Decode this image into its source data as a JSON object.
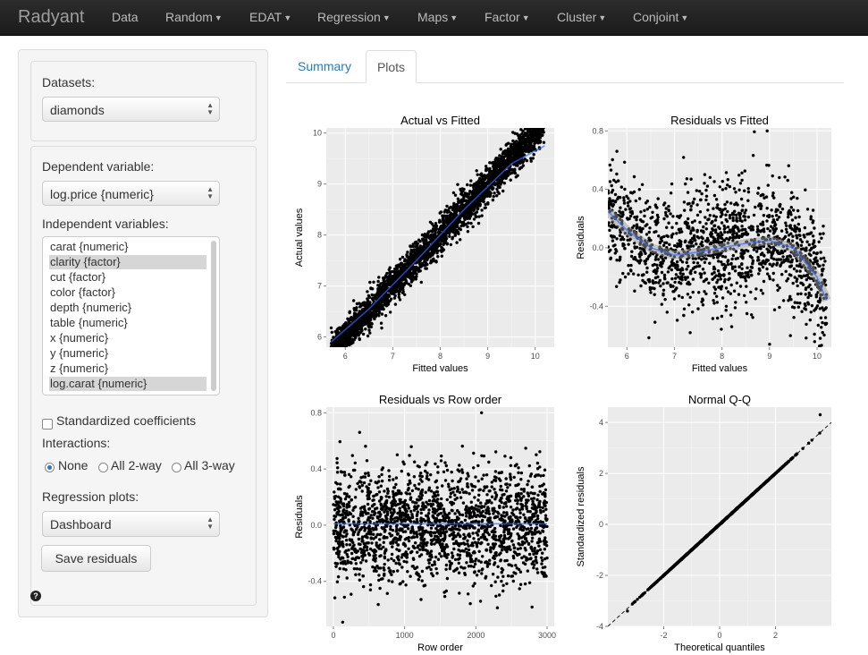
{
  "navbar": {
    "brand": "Radyant",
    "items": [
      "Data",
      "Random",
      "EDAT",
      "Regression",
      "Maps",
      "Factor",
      "Cluster",
      "Conjoint"
    ]
  },
  "sidebar": {
    "datasets_label": "Datasets:",
    "dataset_value": "diamonds",
    "dependent_label": "Dependent variable:",
    "dependent_value": "log.price {numeric}",
    "independent_label": "Independent variables:",
    "independent_options": [
      {
        "label": "carat {numeric}",
        "selected": false
      },
      {
        "label": "clarity {factor}",
        "selected": true
      },
      {
        "label": "cut {factor}",
        "selected": false
      },
      {
        "label": "color {factor}",
        "selected": false
      },
      {
        "label": "depth {numeric}",
        "selected": false
      },
      {
        "label": "table {numeric}",
        "selected": false
      },
      {
        "label": "x {numeric}",
        "selected": false
      },
      {
        "label": "y {numeric}",
        "selected": false
      },
      {
        "label": "z {numeric}",
        "selected": false
      },
      {
        "label": "log.carat {numeric}",
        "selected": true
      }
    ],
    "standardized_label": "Standardized coefficients",
    "interactions_label": "Interactions:",
    "interactions": [
      {
        "label": "None",
        "checked": true
      },
      {
        "label": "All 2-way",
        "checked": false
      },
      {
        "label": "All 3-way",
        "checked": false
      }
    ],
    "plots_label": "Regression plots:",
    "plots_value": "Dashboard",
    "save_button": "Save residuals",
    "help": "?"
  },
  "tabs": [
    {
      "label": "Summary",
      "active": false
    },
    {
      "label": "Plots",
      "active": true
    }
  ],
  "colors": {
    "panel": "#ebebeb",
    "grid": "#ffffff",
    "points": "#000000",
    "smooth": "#3366ff",
    "link": "#2a7ab8"
  },
  "chart_data": [
    {
      "type": "scatter",
      "title": "Actual vs Fitted",
      "xlabel": "Fitted values",
      "ylabel": "Actual values",
      "xlim": [
        5.6,
        10.4
      ],
      "ylim": [
        5.8,
        10.1
      ],
      "xticks": [
        6,
        7,
        8,
        9,
        10
      ],
      "yticks": [
        6,
        7,
        8,
        9,
        10
      ],
      "grid": true,
      "reference_line": "y = x (dashed)",
      "smooth": {
        "x": [
          5.7,
          6.5,
          7.5,
          8.5,
          9.5,
          10.2
        ],
        "y": [
          5.9,
          6.55,
          7.5,
          8.5,
          9.4,
          9.75
        ]
      },
      "points_summary": {
        "n": 3000,
        "x_range": [
          5.7,
          10.2
        ],
        "spread": 0.35
      }
    },
    {
      "type": "scatter",
      "title": "Residuals vs Fitted",
      "xlabel": "Fitted values",
      "ylabel": "Residuals",
      "xlim": [
        5.6,
        10.3
      ],
      "ylim": [
        -0.68,
        0.82
      ],
      "xticks": [
        6,
        7,
        8,
        9,
        10
      ],
      "yticks": [
        -0.4,
        0.0,
        0.4,
        0.8
      ],
      "grid": true,
      "smooth": {
        "x": [
          5.6,
          6.0,
          6.5,
          7.0,
          7.5,
          8.0,
          8.5,
          9.0,
          9.5,
          10.0,
          10.2
        ],
        "y": [
          0.25,
          0.12,
          0.0,
          -0.05,
          -0.03,
          0.0,
          0.03,
          0.05,
          0.0,
          -0.2,
          -0.36
        ]
      },
      "points_summary": {
        "n": 1500,
        "x_range": [
          5.6,
          10.2
        ],
        "spread": 0.2
      }
    },
    {
      "type": "scatter",
      "title": "Residuals vs Row order",
      "xlabel": "Row order",
      "ylabel": "Residuals",
      "xlim": [
        -100,
        3100
      ],
      "ylim": [
        -0.72,
        0.84
      ],
      "xticks": [
        0,
        1000,
        2000,
        3000
      ],
      "yticks": [
        -0.4,
        0.0,
        0.4,
        0.8
      ],
      "grid": true,
      "smooth": {
        "x": [
          0,
          3000
        ],
        "y": [
          0.01,
          0.01
        ]
      },
      "points_summary": {
        "n": 2000,
        "x_range": [
          0,
          3000
        ],
        "spread": 0.2
      }
    },
    {
      "type": "scatter",
      "title": "Normal Q-Q",
      "xlabel": "Theoretical quantiles",
      "ylabel": "Standardized residuals",
      "xlim": [
        -4.0,
        4.0
      ],
      "ylim": [
        -4.0,
        4.6
      ],
      "xticks": [
        -2,
        0,
        2
      ],
      "yticks": [
        -4,
        -2,
        0,
        2,
        4
      ],
      "grid": true,
      "reference_line": "y = x (dashed)",
      "points_summary": {
        "n": 3000,
        "x_range": [
          -3.5,
          3.6
        ]
      }
    }
  ]
}
